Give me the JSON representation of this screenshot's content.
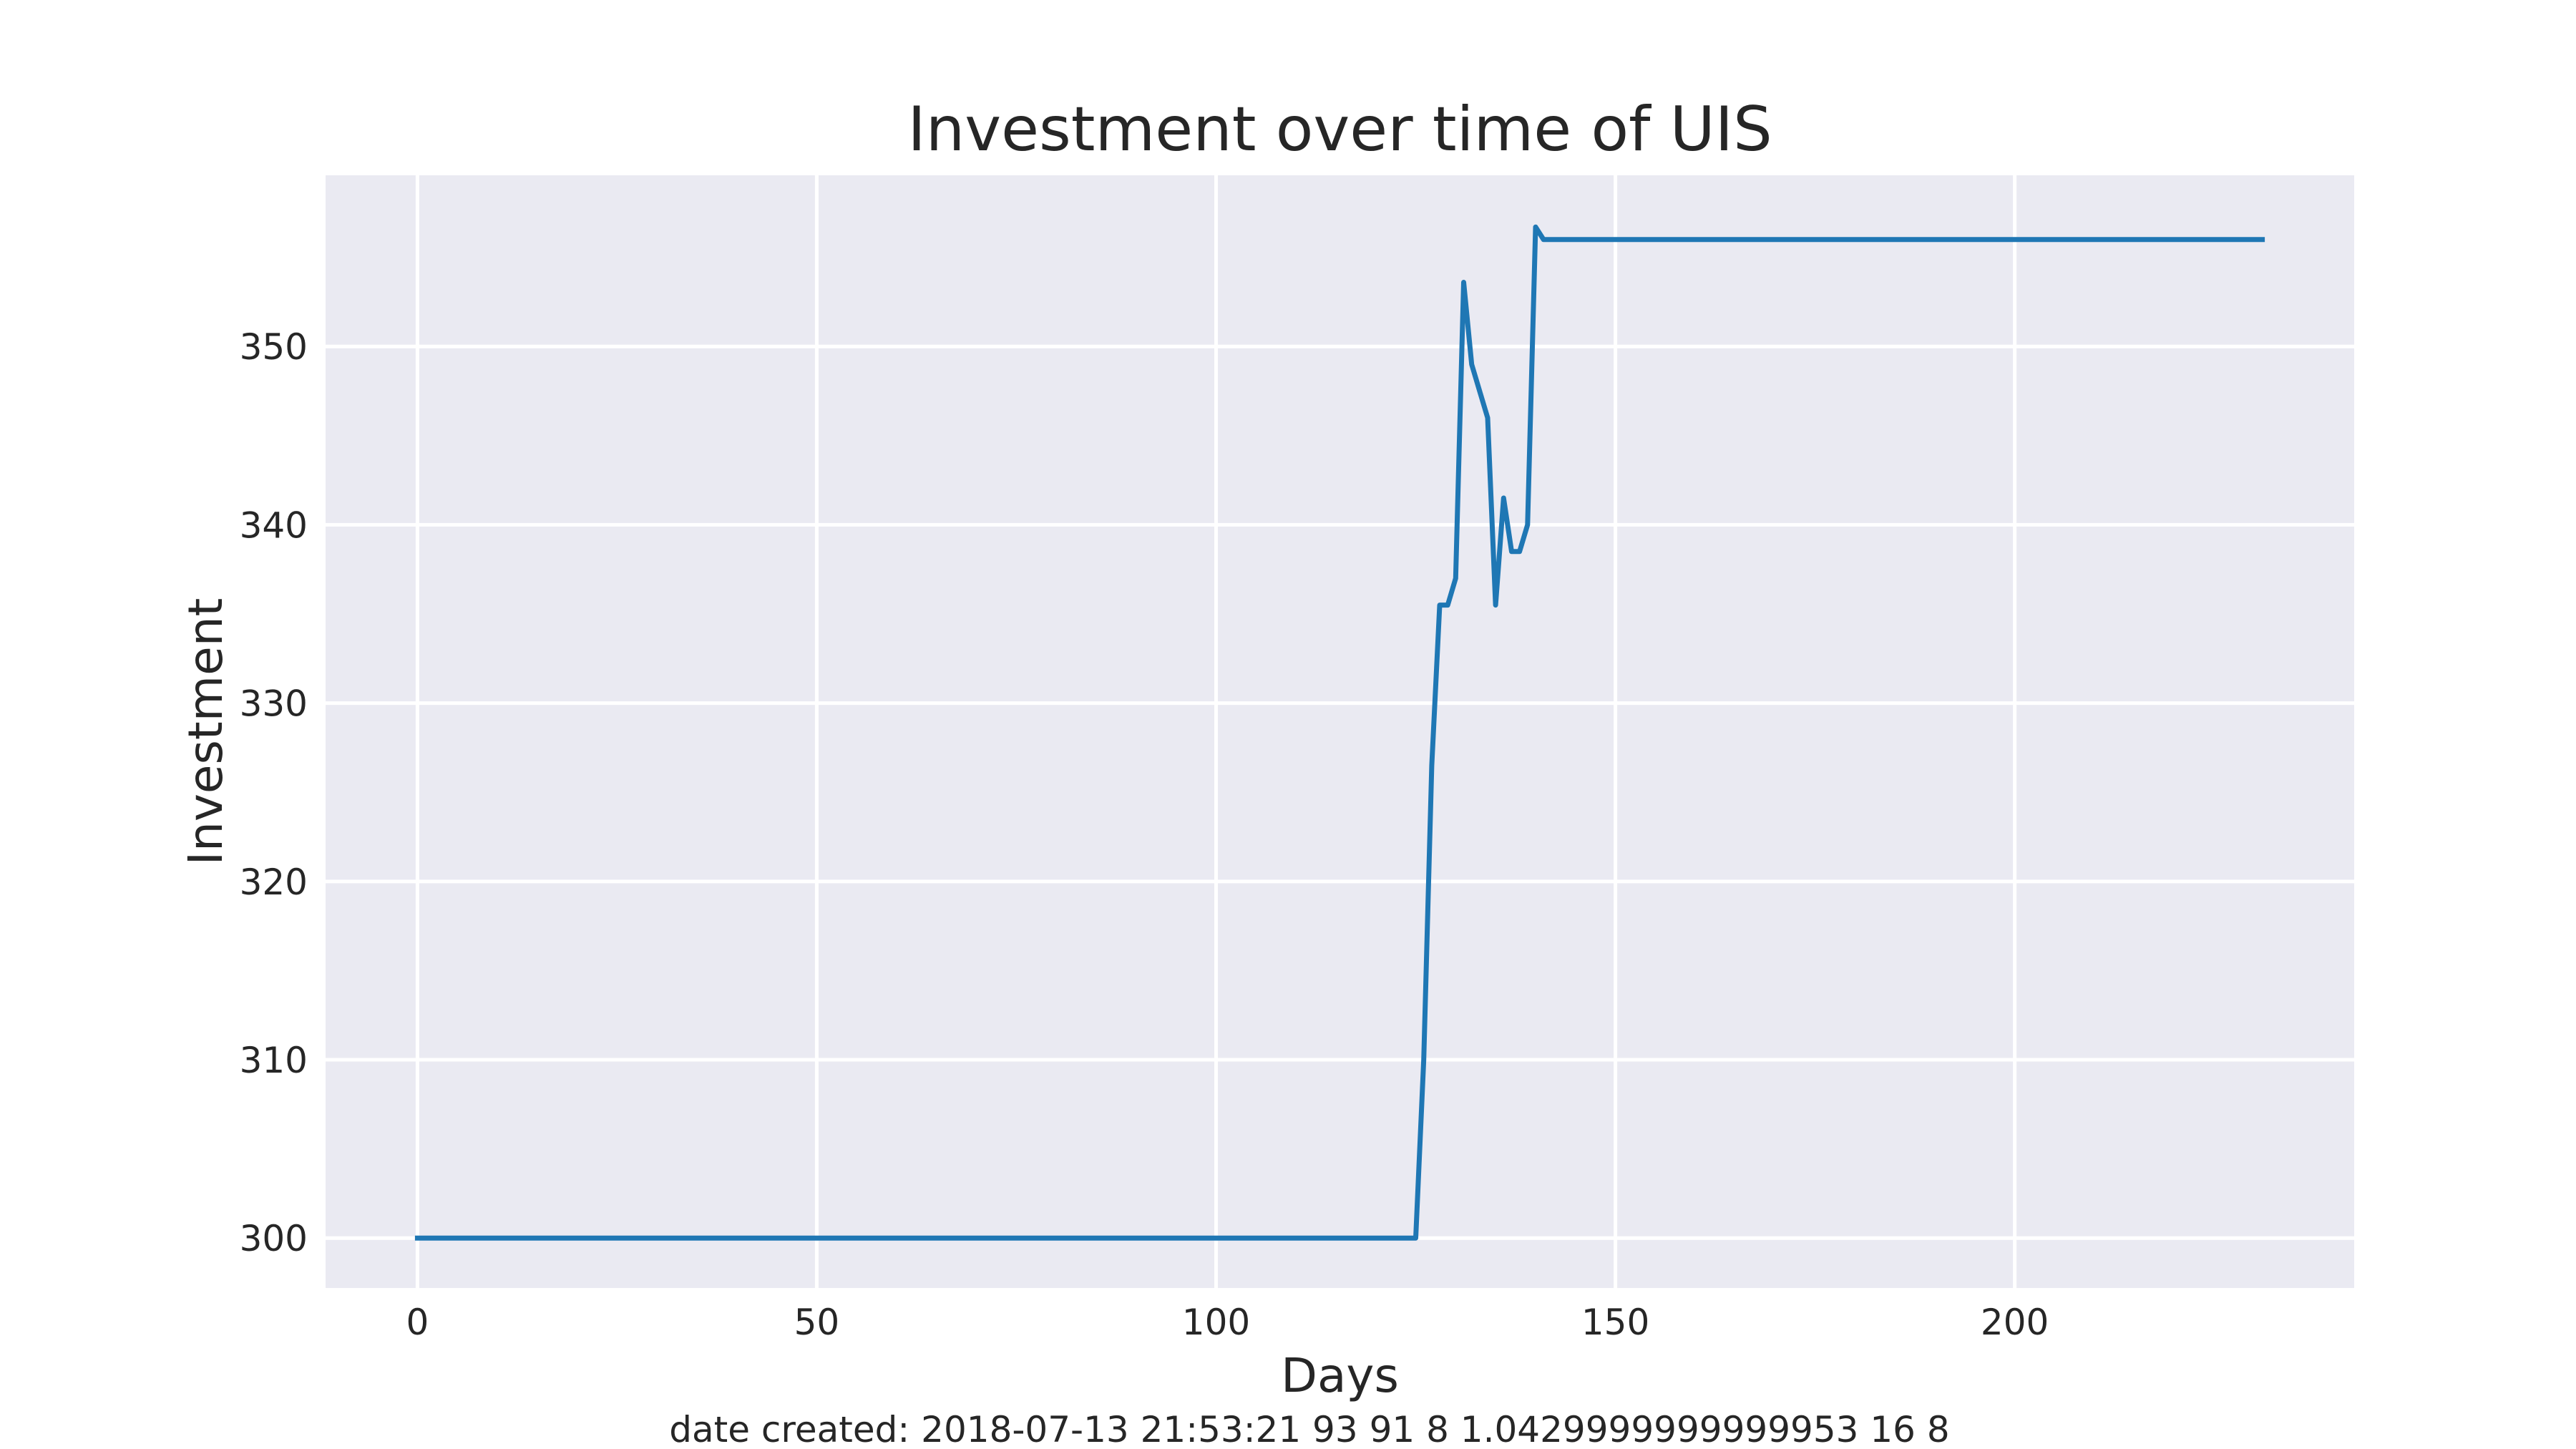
{
  "chart_data": {
    "type": "line",
    "title": "Investment over time of UIS",
    "xlabel": "Days",
    "ylabel": "Investment",
    "xlim": [
      -11.5,
      242.5
    ],
    "ylim": [
      297.2,
      359.6
    ],
    "xticks": [
      0,
      50,
      100,
      150,
      200
    ],
    "yticks": [
      300,
      310,
      320,
      330,
      340,
      350
    ],
    "grid": true,
    "legend": "none",
    "series": [
      {
        "color": "#1f77b4",
        "points": [
          [
            0,
            300.0
          ],
          [
            125,
            300.0
          ],
          [
            126,
            310.0
          ],
          [
            127,
            326.5
          ],
          [
            128,
            335.5
          ],
          [
            129,
            335.5
          ],
          [
            130,
            337.0
          ],
          [
            131,
            353.6
          ],
          [
            132,
            349.0
          ],
          [
            133,
            347.5
          ],
          [
            134,
            346.0
          ],
          [
            135,
            335.5
          ],
          [
            136,
            341.5
          ],
          [
            137,
            338.5
          ],
          [
            138,
            338.5
          ],
          [
            139,
            340.0
          ],
          [
            140,
            356.7
          ],
          [
            141,
            356.0
          ],
          [
            231,
            356.0
          ]
        ]
      }
    ]
  },
  "style": {
    "background": "#eaeaf2",
    "grid_color": "#ffffff",
    "line_color": "#1f77b4"
  },
  "footer": {
    "text": "date created: 2018-07-13 21:53:21 93 91 8 1.0429999999999953 16 8"
  }
}
